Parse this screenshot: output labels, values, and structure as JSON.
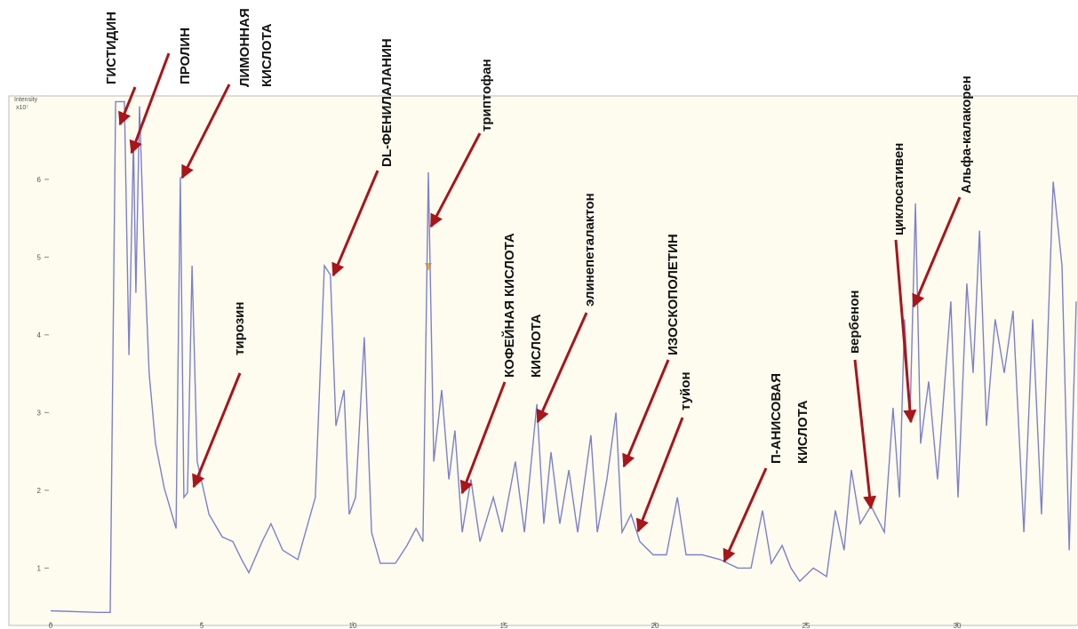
{
  "chart_data": {
    "type": "line",
    "y_label": "Intensity",
    "y_scale": "x10⁷",
    "x": [
      0,
      1.56,
      1.97,
      2.15,
      2.44,
      2.59,
      2.74,
      2.82,
      2.94,
      3.09,
      3.26,
      3.47,
      3.76,
      4.15,
      4.29,
      4.41,
      4.53,
      4.68,
      4.85,
      5.24,
      5.68,
      6.03,
      6.32,
      6.56,
      7.0,
      7.29,
      7.68,
      8.18,
      8.76,
      9.06,
      9.26,
      9.44,
      9.71,
      9.88,
      10.09,
      10.38,
      10.62,
      10.91,
      11.41,
      11.79,
      12.09,
      12.32,
      12.5,
      12.68,
      12.94,
      13.18,
      13.38,
      13.62,
      13.91,
      14.21,
      14.65,
      14.94,
      15.38,
      15.68,
      16.09,
      16.32,
      16.56,
      16.85,
      17.15,
      17.44,
      17.88,
      18.09,
      18.41,
      18.71,
      18.91,
      19.21,
      19.5,
      19.94,
      20.38,
      20.74,
      21.03,
      21.56,
      22.15,
      22.74,
      23.18,
      23.56,
      23.85,
      24.21,
      24.5,
      24.79,
      25.24,
      25.68,
      25.97,
      26.26,
      26.5,
      26.79,
      27.15,
      27.59,
      27.88,
      28.09,
      28.26,
      28.44,
      28.62,
      28.79,
      29.06,
      29.35,
      29.79,
      30.03,
      30.32,
      30.53,
      30.74,
      30.97,
      31.26,
      31.56,
      31.85,
      32.21,
      32.5,
      32.79,
      33.18,
      33.47,
      33.71,
      33.94
    ],
    "values": [
      0.45,
      0.43,
      0.43,
      7.0,
      7.0,
      3.74,
      6.49,
      4.54,
      6.94,
      5.11,
      3.51,
      2.6,
      2.03,
      1.51,
      6.03,
      1.91,
      1.97,
      4.89,
      2.37,
      1.69,
      1.4,
      1.34,
      1.11,
      0.94,
      1.34,
      1.57,
      1.23,
      1.11,
      1.91,
      4.89,
      4.77,
      2.83,
      3.29,
      1.69,
      1.91,
      3.97,
      1.46,
      1.06,
      1.06,
      1.29,
      1.51,
      1.34,
      6.09,
      2.37,
      3.29,
      2.14,
      2.77,
      1.46,
      2.14,
      1.34,
      1.91,
      1.46,
      2.37,
      1.46,
      3.11,
      1.57,
      2.49,
      1.57,
      2.26,
      1.46,
      2.71,
      1.46,
      2.14,
      3.0,
      1.46,
      1.69,
      1.34,
      1.17,
      1.17,
      1.91,
      1.17,
      1.17,
      1.11,
      1.0,
      1.0,
      1.74,
      1.06,
      1.29,
      1.0,
      0.83,
      1.0,
      0.89,
      1.74,
      1.23,
      2.26,
      1.57,
      1.8,
      1.46,
      3.06,
      1.91,
      4.2,
      2.94,
      5.69,
      2.6,
      3.4,
      2.14,
      4.43,
      1.91,
      4.66,
      3.51,
      5.34,
      2.83,
      4.2,
      3.51,
      4.31,
      1.46,
      4.2,
      1.69,
      5.97,
      4.89,
      1.23,
      4.43
    ],
    "color": "#7d80cc",
    "xlim": [
      0,
      34
    ],
    "ylim": [
      0.25,
      7.05
    ],
    "xticks": [
      0,
      5,
      10,
      15,
      20,
      25,
      30
    ],
    "yticks": [
      1,
      2,
      3,
      4,
      5,
      6
    ],
    "annotations": [
      {
        "lines": [
          "ГИСТИДИН"
        ]
      },
      {
        "lines": [
          "ПРОЛИН"
        ]
      },
      {
        "lines": [
          "ЛИМОННАЯ",
          "КИСЛОТА"
        ]
      },
      {
        "lines": [
          "DL-ФЕНИЛАЛАНИН"
        ]
      },
      {
        "lines": [
          "триптофан"
        ]
      },
      {
        "lines": [
          "тирозин"
        ]
      },
      {
        "lines": [
          "КОФЕЙНАЯ КИСЛОТА",
          "КИСЛОТА"
        ]
      },
      {
        "lines": [
          "элинепеталактон"
        ]
      },
      {
        "lines": [
          "ИЗОСКОПОЛЕТИН"
        ]
      },
      {
        "lines": [
          "туйон"
        ]
      },
      {
        "lines": [
          "П-АНИСОВАЯ",
          "КИСЛОТА"
        ]
      },
      {
        "lines": [
          "вербенон"
        ]
      },
      {
        "lines": [
          "циклосативен"
        ]
      },
      {
        "lines": [
          "Альфа-калакорен"
        ]
      }
    ]
  }
}
